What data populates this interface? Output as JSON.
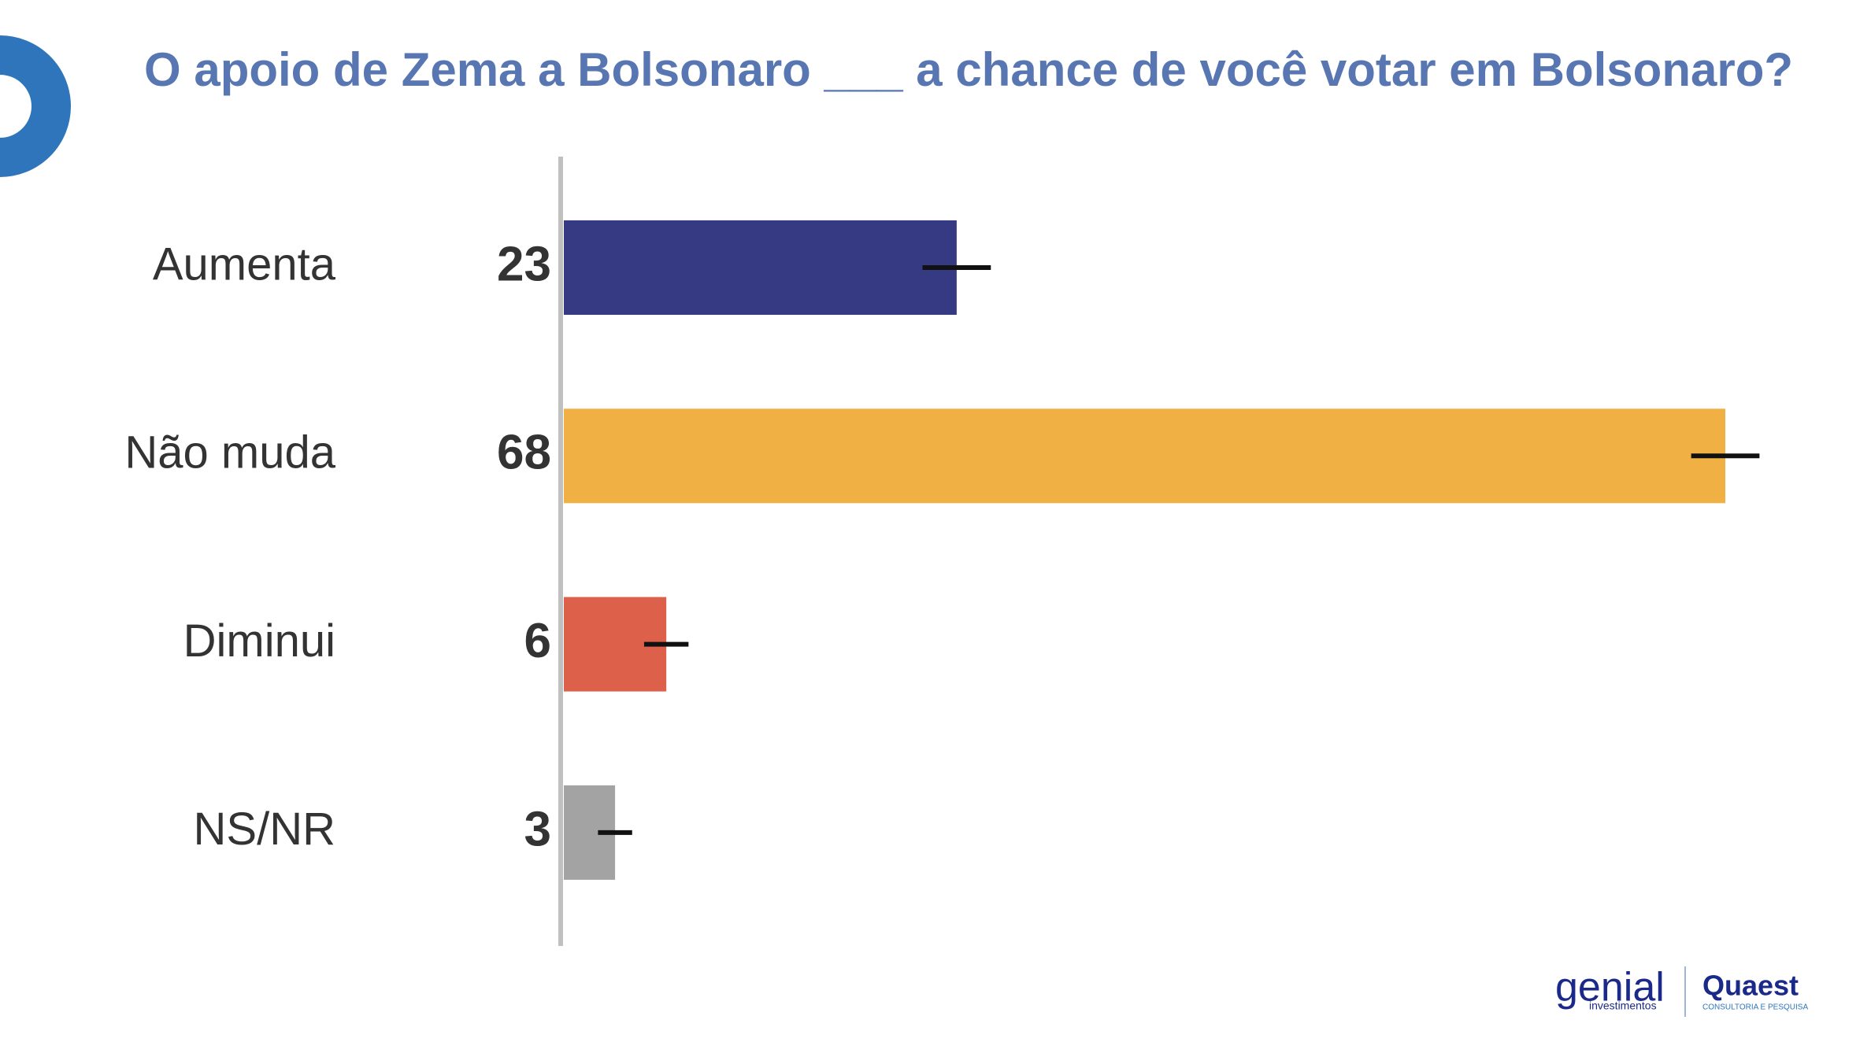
{
  "chart_data": {
    "type": "bar",
    "orientation": "horizontal",
    "title": "O apoio de Zema a Bolsonaro ___ a chance de você votar em Bolsonaro?",
    "categories": [
      "Aumenta",
      "Não muda",
      "Diminui",
      "NS/NR"
    ],
    "values": [
      23,
      68,
      6,
      3
    ],
    "errors": [
      2,
      2,
      1.3,
      1
    ],
    "colors": [
      "#353a82",
      "#f1b043",
      "#dd604b",
      "#a3a3a3"
    ]
  },
  "logos": {
    "genial": "genial",
    "genial_sub": "investimentos",
    "quaest": "Quaest",
    "quaest_sub": "CONSULTORIA E PESQUISA"
  }
}
